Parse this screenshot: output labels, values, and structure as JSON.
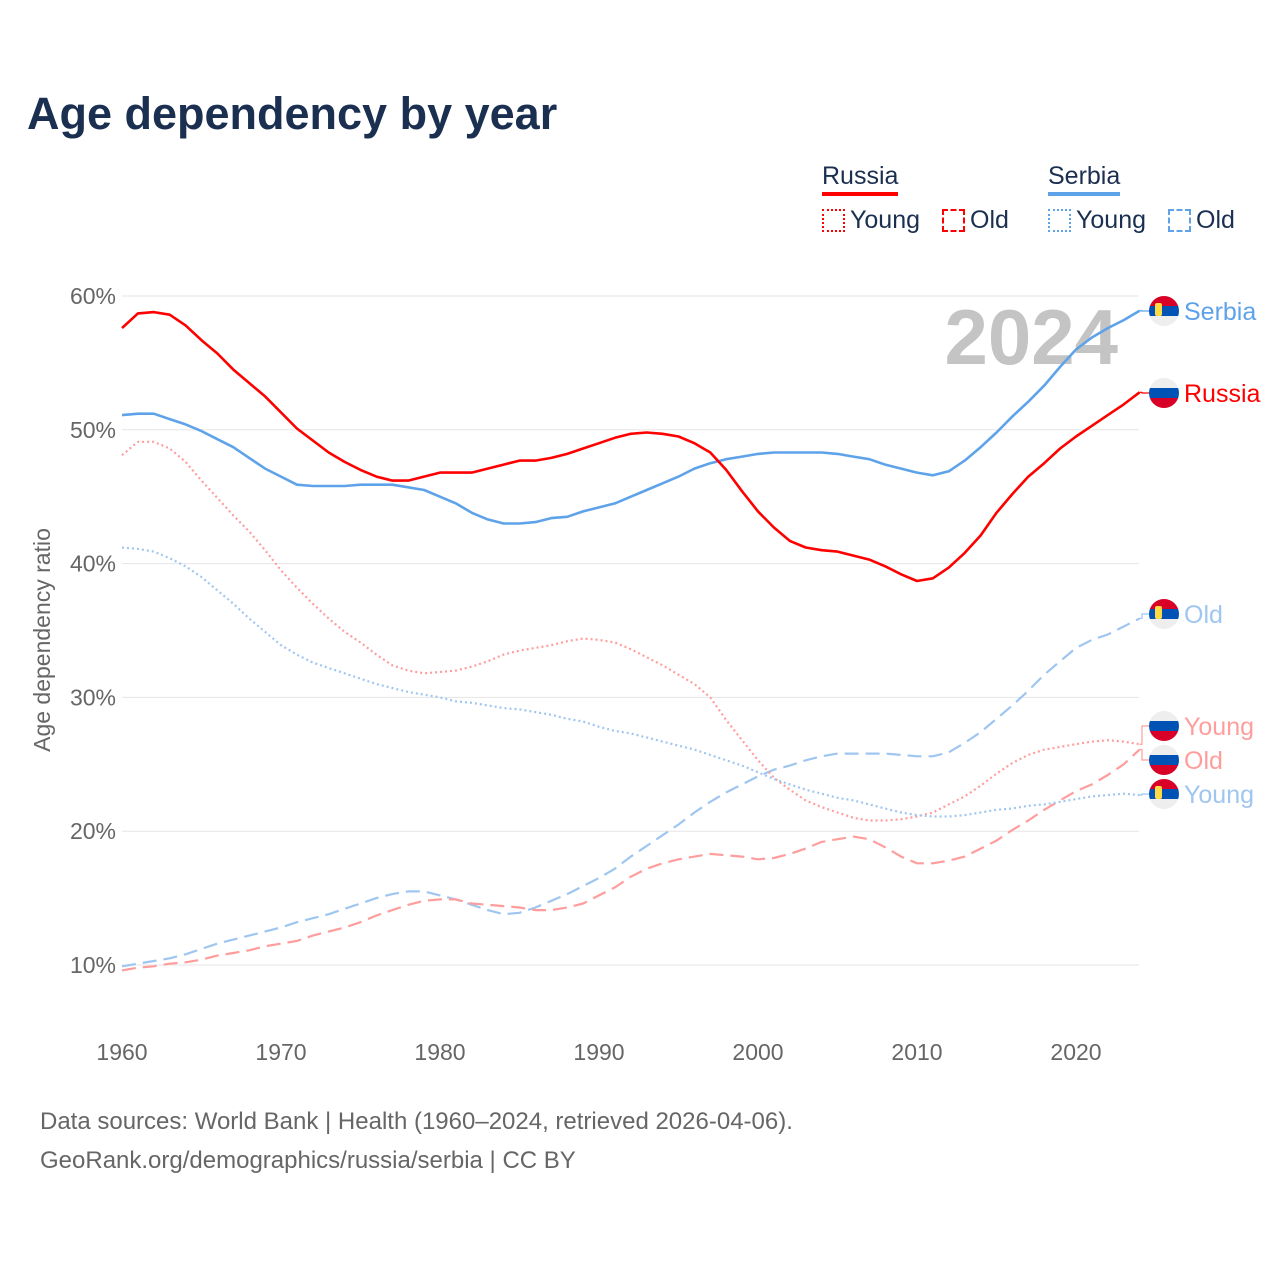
{
  "title": "Age dependency by year",
  "legend": {
    "groups": [
      {
        "name": "Russia",
        "color": "#ff0000",
        "items": [
          {
            "label": "Young",
            "style": "dotted"
          },
          {
            "label": "Old",
            "style": "dashed"
          }
        ]
      },
      {
        "name": "Serbia",
        "color": "#5ea3e9",
        "items": [
          {
            "label": "Young",
            "style": "dotted"
          },
          {
            "label": "Old",
            "style": "dashed"
          }
        ]
      }
    ]
  },
  "year_watermark": "2024",
  "footer": {
    "line1": "Data sources: World Bank | Health (1960–2024, retrieved 2026-04-06).",
    "line2": "GeoRank.org/demographics/russia/serbia | CC BY"
  },
  "chart_data": {
    "type": "line",
    "title": "Age dependency by year",
    "xlabel": "",
    "ylabel": "Age dependency ratio",
    "x_start": 1960,
    "x_end": 2024,
    "xlim": [
      1960,
      2024
    ],
    "ylim": [
      5,
      64
    ],
    "xticks": [
      "1960",
      "1970",
      "1980",
      "1990",
      "2000",
      "2010",
      "2020"
    ],
    "yticks": [
      "10%",
      "20%",
      "30%",
      "40%",
      "50%",
      "60%"
    ],
    "grid": true,
    "series": [
      {
        "name": "Serbia",
        "end_label": "Serbia",
        "country": "serbia",
        "color": "#5ea3e9",
        "style": "solid",
        "values": [
          51.1,
          51.2,
          51.2,
          50.8,
          50.4,
          49.9,
          49.3,
          48.7,
          47.9,
          47.1,
          46.5,
          45.9,
          45.8,
          45.8,
          45.8,
          45.9,
          45.9,
          45.9,
          45.7,
          45.5,
          45.0,
          44.5,
          43.8,
          43.3,
          43.0,
          43.0,
          43.1,
          43.4,
          43.5,
          43.9,
          44.2,
          44.5,
          45.0,
          45.5,
          46.0,
          46.5,
          47.1,
          47.5,
          47.8,
          48.0,
          48.2,
          48.3,
          48.3,
          48.3,
          48.3,
          48.2,
          48.0,
          47.8,
          47.4,
          47.1,
          46.8,
          46.6,
          46.9,
          47.7,
          48.7,
          49.8,
          51.0,
          52.1,
          53.3,
          54.7,
          56.0,
          56.9,
          57.6,
          58.2,
          58.9
        ]
      },
      {
        "name": "Russia",
        "end_label": "Russia",
        "country": "russia",
        "color": "#ff0000",
        "style": "solid",
        "values": [
          57.6,
          58.7,
          58.8,
          58.6,
          57.8,
          56.7,
          55.7,
          54.5,
          53.5,
          52.5,
          51.3,
          50.1,
          49.2,
          48.3,
          47.6,
          47.0,
          46.5,
          46.2,
          46.2,
          46.5,
          46.8,
          46.8,
          46.8,
          47.1,
          47.4,
          47.7,
          47.7,
          47.9,
          48.2,
          48.6,
          49.0,
          49.4,
          49.7,
          49.8,
          49.7,
          49.5,
          49.0,
          48.3,
          47.0,
          45.4,
          43.9,
          42.7,
          41.7,
          41.2,
          41.0,
          40.9,
          40.6,
          40.3,
          39.8,
          39.2,
          38.7,
          38.9,
          39.7,
          40.8,
          42.1,
          43.8,
          45.2,
          46.5,
          47.5,
          48.6,
          49.5,
          50.3,
          51.1,
          51.9,
          52.8
        ]
      },
      {
        "name": "Serbia Old",
        "end_label": "Old",
        "country": "serbia",
        "color": "#9fc6f0",
        "style": "dashed",
        "values": [
          9.9,
          10.1,
          10.3,
          10.5,
          10.8,
          11.2,
          11.6,
          11.9,
          12.2,
          12.5,
          12.8,
          13.2,
          13.5,
          13.8,
          14.2,
          14.6,
          15.0,
          15.3,
          15.5,
          15.5,
          15.2,
          14.9,
          14.5,
          14.1,
          13.8,
          13.9,
          14.3,
          14.8,
          15.3,
          15.9,
          16.5,
          17.2,
          18.1,
          18.9,
          19.7,
          20.5,
          21.4,
          22.2,
          22.9,
          23.5,
          24.1,
          24.6,
          24.9,
          25.3,
          25.6,
          25.8,
          25.8,
          25.8,
          25.8,
          25.7,
          25.6,
          25.6,
          25.9,
          26.6,
          27.4,
          28.4,
          29.4,
          30.5,
          31.7,
          32.7,
          33.7,
          34.3,
          34.7,
          35.3,
          35.9
        ]
      },
      {
        "name": "Russia Young",
        "end_label": "Young",
        "country": "russia",
        "color": "#ff9d9d",
        "style": "dotted",
        "values": [
          48.1,
          49.1,
          49.1,
          48.6,
          47.6,
          46.2,
          44.9,
          43.6,
          42.4,
          41.0,
          39.5,
          38.2,
          37.0,
          35.9,
          34.9,
          34.1,
          33.2,
          32.4,
          32.0,
          31.8,
          31.9,
          32.0,
          32.3,
          32.7,
          33.2,
          33.5,
          33.7,
          33.9,
          34.2,
          34.4,
          34.3,
          34.1,
          33.6,
          33.0,
          32.4,
          31.7,
          31.0,
          30.0,
          28.3,
          26.8,
          25.3,
          24.0,
          23.1,
          22.3,
          21.8,
          21.4,
          21.0,
          20.8,
          20.8,
          20.9,
          21.1,
          21.4,
          22.0,
          22.6,
          23.4,
          24.3,
          25.1,
          25.7,
          26.1,
          26.3,
          26.5,
          26.7,
          26.8,
          26.7,
          26.5
        ]
      },
      {
        "name": "Russia Old",
        "end_label": "Old",
        "country": "russia",
        "color": "#ff9d9d",
        "style": "dashed",
        "values": [
          9.6,
          9.8,
          9.9,
          10.1,
          10.2,
          10.4,
          10.7,
          10.9,
          11.1,
          11.4,
          11.6,
          11.8,
          12.2,
          12.5,
          12.8,
          13.2,
          13.7,
          14.1,
          14.5,
          14.8,
          14.9,
          14.9,
          14.6,
          14.5,
          14.4,
          14.3,
          14.1,
          14.1,
          14.3,
          14.6,
          15.2,
          15.8,
          16.6,
          17.2,
          17.6,
          17.9,
          18.1,
          18.3,
          18.2,
          18.1,
          17.9,
          18.0,
          18.3,
          18.7,
          19.2,
          19.4,
          19.6,
          19.4,
          18.8,
          18.1,
          17.6,
          17.6,
          17.8,
          18.1,
          18.7,
          19.3,
          20.1,
          20.8,
          21.6,
          22.3,
          23.0,
          23.5,
          24.2,
          25.0,
          26.1
        ]
      },
      {
        "name": "Serbia Young",
        "end_label": "Young",
        "country": "serbia",
        "color": "#9fc6f0",
        "style": "dotted",
        "values": [
          41.2,
          41.1,
          40.9,
          40.4,
          39.8,
          39.0,
          38.0,
          37.0,
          35.9,
          34.9,
          33.9,
          33.2,
          32.6,
          32.2,
          31.8,
          31.4,
          31.0,
          30.7,
          30.4,
          30.2,
          30.0,
          29.7,
          29.6,
          29.4,
          29.2,
          29.1,
          28.9,
          28.7,
          28.4,
          28.2,
          27.8,
          27.5,
          27.3,
          27.0,
          26.7,
          26.4,
          26.1,
          25.7,
          25.3,
          24.9,
          24.4,
          23.9,
          23.5,
          23.1,
          22.8,
          22.5,
          22.3,
          22.0,
          21.7,
          21.4,
          21.2,
          21.1,
          21.1,
          21.2,
          21.4,
          21.6,
          21.7,
          21.9,
          22.0,
          22.2,
          22.4,
          22.6,
          22.7,
          22.8,
          22.7
        ]
      }
    ]
  }
}
